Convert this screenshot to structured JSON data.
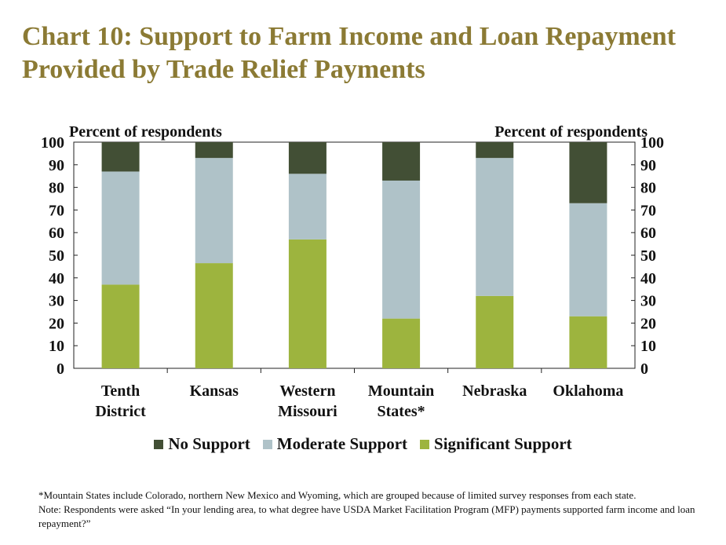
{
  "title": "Chart 10: Support to Farm Income and Loan Repayment Provided by Trade Relief Payments",
  "chart_data": {
    "type": "bar",
    "stacked": true,
    "title": "Chart 10: Support to Farm Income and Loan Repayment Provided by Trade Relief Payments",
    "ylabel_left": "Percent of respondents",
    "ylabel_right": "Percent of respondents",
    "ylim": [
      0,
      100
    ],
    "yticks": [
      0,
      10,
      20,
      30,
      40,
      50,
      60,
      70,
      80,
      90,
      100
    ],
    "categories": [
      [
        "Tenth",
        "District"
      ],
      [
        "Kansas"
      ],
      [
        "Western",
        "Missouri"
      ],
      [
        "Mountain",
        "States*"
      ],
      [
        "Nebraska"
      ],
      [
        "Oklahoma"
      ]
    ],
    "series": [
      {
        "name": "Significant Support",
        "color": "#9db43e",
        "values": [
          37,
          46.5,
          57,
          22,
          32,
          23
        ]
      },
      {
        "name": "Moderate Support",
        "color": "#afc2c8",
        "values": [
          50,
          46.5,
          29,
          61,
          61,
          50
        ]
      },
      {
        "name": "No Support",
        "color": "#424f35",
        "values": [
          13,
          7,
          14,
          17,
          7,
          27
        ]
      }
    ],
    "legend_order": [
      "No Support",
      "Moderate Support",
      "Significant Support"
    ],
    "legend_position": "bottom",
    "grid": false
  },
  "notes": [
    "*Mountain States include Colorado, northern New Mexico and Wyoming, which are grouped because of limited survey responses from each state.",
    "Note: Respondents were asked “In your lending area, to what degree have USDA Market Facilitation Program (MFP) payments supported farm income and loan repayment?”"
  ]
}
